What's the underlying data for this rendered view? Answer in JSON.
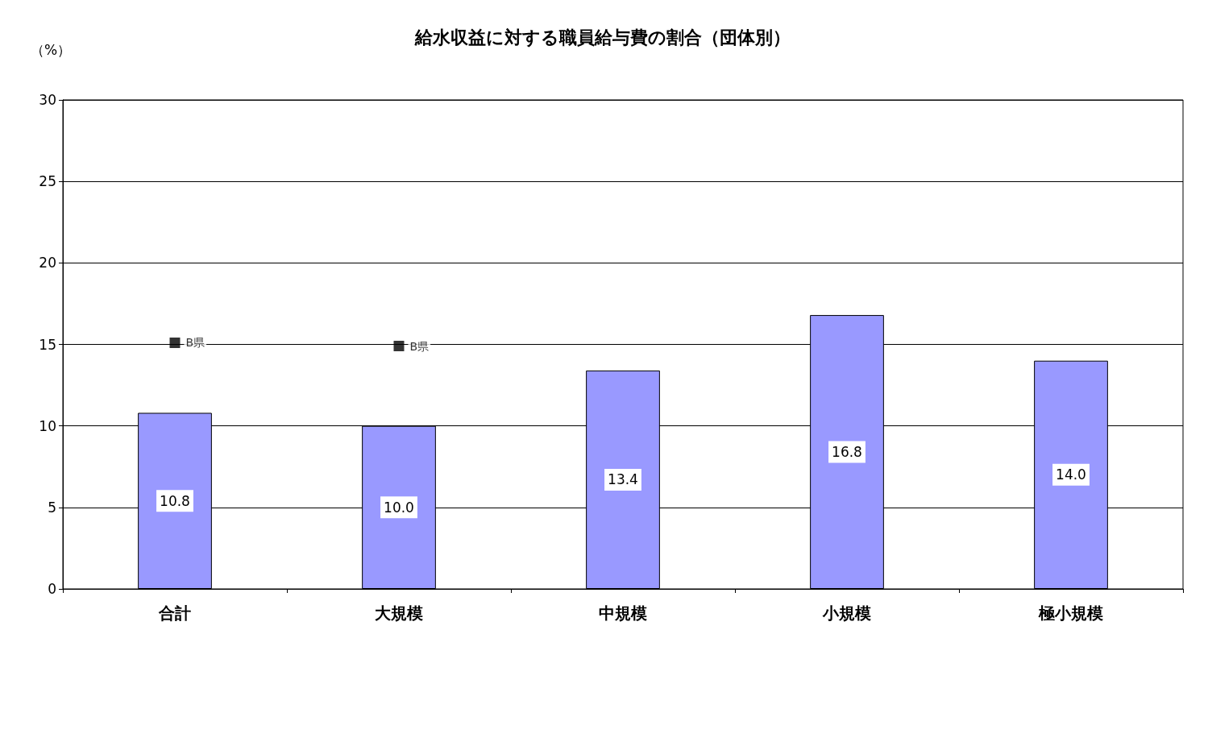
{
  "chart_data": {
    "type": "bar",
    "title": "給水収益に対する職員給与費の割合（団体別）",
    "ylabel": "（%）",
    "categories": [
      "合計",
      "大規模",
      "中規模",
      "小規模",
      "極小規模"
    ],
    "series": [
      {
        "color": "#9999ff",
        "values": [
          10.8,
          10.0,
          13.4,
          16.8,
          14.0
        ],
        "value_labels": [
          "10.8",
          "10.0",
          "13.4",
          "16.8",
          "14.0"
        ]
      },
      {
        "type": "scatter",
        "name": "B県",
        "color": "#000000",
        "x": [
          "合計",
          "大規模"
        ],
        "values": [
          15.1,
          14.9
        ],
        "marker": "square"
      }
    ],
    "ylim": [
      0,
      30
    ],
    "yticks": [
      0,
      5,
      10,
      15,
      20,
      25,
      30
    ],
    "grid": "y"
  }
}
